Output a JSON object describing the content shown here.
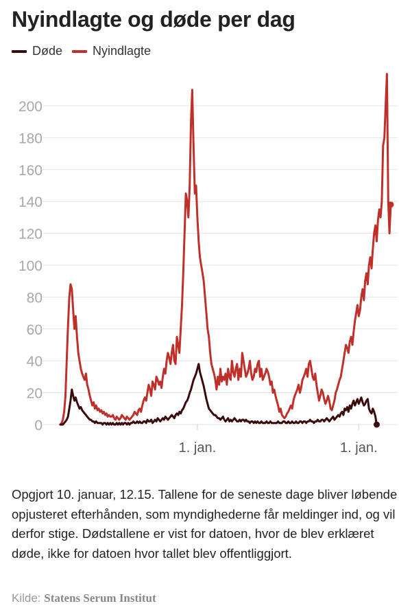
{
  "header": {
    "title": "Nyindlagte og døde per dag"
  },
  "legend": [
    {
      "label": "Døde",
      "color": "#3b0a0a"
    },
    {
      "label": "Nyindlagte",
      "color": "#c0302a"
    }
  ],
  "note": "Opgjort 10. januar, 12.15. Tallene for de seneste dage bliver løbende opjusteret efterhånden, som myndighederne får meldinger ind, og vil derfor stige. Dødstallene er vist for datoen, hvor de blev erklæret døde, ikke for datoen hvor tallet blev offentliggjort.",
  "source": {
    "label": "Kilde:",
    "name": "Statens Serum Institut"
  },
  "chart_data": {
    "type": "line",
    "x_tick_labels": [
      "1. jan.",
      "1. jan."
    ],
    "ylim": [
      0,
      215
    ],
    "y_ticks": [
      0,
      20,
      40,
      60,
      80,
      100,
      120,
      140,
      160,
      180,
      200
    ],
    "grid": true,
    "legend_position": "top-left",
    "x_unit": "day index (series starts at first point)",
    "series": [
      {
        "name": "Nyindlagte",
        "color": "#c0302a",
        "values": [
          0,
          1,
          3,
          8,
          18,
          40,
          62,
          80,
          88,
          85,
          72,
          60,
          68,
          55,
          45,
          40,
          35,
          32,
          30,
          28,
          32,
          25,
          22,
          18,
          15,
          12,
          14,
          10,
          12,
          9,
          10,
          8,
          9,
          7,
          8,
          6,
          7,
          5,
          6,
          5,
          5,
          6,
          4,
          3,
          5,
          4,
          3,
          4,
          6,
          5,
          4,
          3,
          5,
          4,
          3,
          4,
          5,
          6,
          8,
          7,
          6,
          9,
          10,
          8,
          12,
          15,
          17,
          15,
          20,
          25,
          22,
          18,
          27,
          25,
          22,
          30,
          28,
          25,
          27,
          23,
          30,
          35,
          32,
          40,
          45,
          42,
          38,
          45,
          50,
          40,
          38,
          55,
          50,
          45,
          60,
          75,
          95,
          120,
          145,
          140,
          130,
          150,
          190,
          210,
          175,
          145,
          150,
          130,
          115,
          105,
          100,
          95,
          90,
          80,
          70,
          60,
          55,
          45,
          38,
          35,
          32,
          28,
          22,
          30,
          25,
          35,
          27,
          30,
          28,
          32,
          25,
          35,
          30,
          28,
          40,
          33,
          30,
          35,
          38,
          28,
          35,
          30,
          45,
          40,
          35,
          30,
          32,
          35,
          40,
          32,
          28,
          30,
          35,
          33,
          38,
          40,
          30,
          35,
          28,
          30,
          32,
          35,
          33,
          30,
          25,
          27,
          20,
          22,
          18,
          15,
          12,
          8,
          10,
          6,
          5,
          4,
          5,
          7,
          8,
          10,
          12,
          10,
          15,
          18,
          20,
          22,
          25,
          20,
          23,
          28,
          30,
          32,
          35,
          30,
          38,
          40,
          35,
          30,
          28,
          32,
          25,
          20,
          15,
          18,
          22,
          20,
          16,
          13,
          15,
          18,
          15,
          10,
          9,
          12,
          15,
          20,
          22,
          25,
          28,
          30,
          35,
          40,
          45,
          50,
          48,
          45,
          52,
          55,
          50,
          58,
          65,
          70,
          75,
          68,
          72,
          80,
          85,
          78,
          90,
          95,
          88,
          100,
          105,
          98,
          110,
          120,
          125,
          115,
          128,
          135,
          130,
          140,
          175,
          180,
          200,
          220,
          140,
          120,
          138
        ]
      },
      {
        "name": "Døde",
        "color": "#3b0a0a",
        "values": [
          0,
          0,
          0,
          1,
          2,
          3,
          5,
          10,
          15,
          22,
          18,
          15,
          17,
          14,
          12,
          10,
          11,
          9,
          8,
          7,
          6,
          5,
          4,
          3,
          3,
          2,
          2,
          1,
          2,
          1,
          1,
          1,
          1,
          0,
          1,
          1,
          0,
          1,
          0,
          1,
          0,
          1,
          0,
          0,
          1,
          0,
          1,
          0,
          1,
          0,
          1,
          1,
          0,
          1,
          0,
          1,
          1,
          2,
          1,
          1,
          2,
          1,
          2,
          1,
          1,
          2,
          2,
          1,
          3,
          2,
          2,
          3,
          1,
          2,
          3,
          2,
          4,
          3,
          2,
          3,
          4,
          3,
          5,
          4,
          3,
          4,
          5,
          6,
          5,
          4,
          6,
          7,
          6,
          8,
          7,
          9,
          10,
          12,
          14,
          15,
          17,
          20,
          22,
          25,
          28,
          30,
          32,
          35,
          38,
          33,
          30,
          27,
          24,
          20,
          16,
          13,
          10,
          9,
          8,
          7,
          6,
          6,
          5,
          4,
          4,
          3,
          4,
          5,
          3,
          2,
          3,
          4,
          2,
          3,
          2,
          3,
          4,
          3,
          2,
          2,
          3,
          2,
          3,
          3,
          2,
          3,
          2,
          2,
          1,
          2,
          2,
          1,
          2,
          1,
          2,
          1,
          1,
          2,
          1,
          1,
          1,
          2,
          1,
          1,
          2,
          1,
          1,
          1,
          1,
          1,
          2,
          1,
          1,
          1,
          2,
          2,
          1,
          1,
          2,
          1,
          1,
          2,
          1,
          1,
          2,
          1,
          1,
          2,
          2,
          1,
          2,
          2,
          1,
          2,
          2,
          3,
          2,
          2,
          1,
          2,
          2,
          3,
          2,
          2,
          3,
          3,
          2,
          3,
          4,
          3,
          2,
          3,
          4,
          5,
          3,
          4,
          5,
          6,
          5,
          7,
          8,
          6,
          10,
          9,
          11,
          8,
          12,
          10,
          13,
          15,
          12,
          14,
          16,
          13,
          15,
          17,
          14,
          12,
          13,
          15,
          16,
          10,
          8,
          7,
          10,
          8,
          5,
          0
        ]
      }
    ]
  }
}
